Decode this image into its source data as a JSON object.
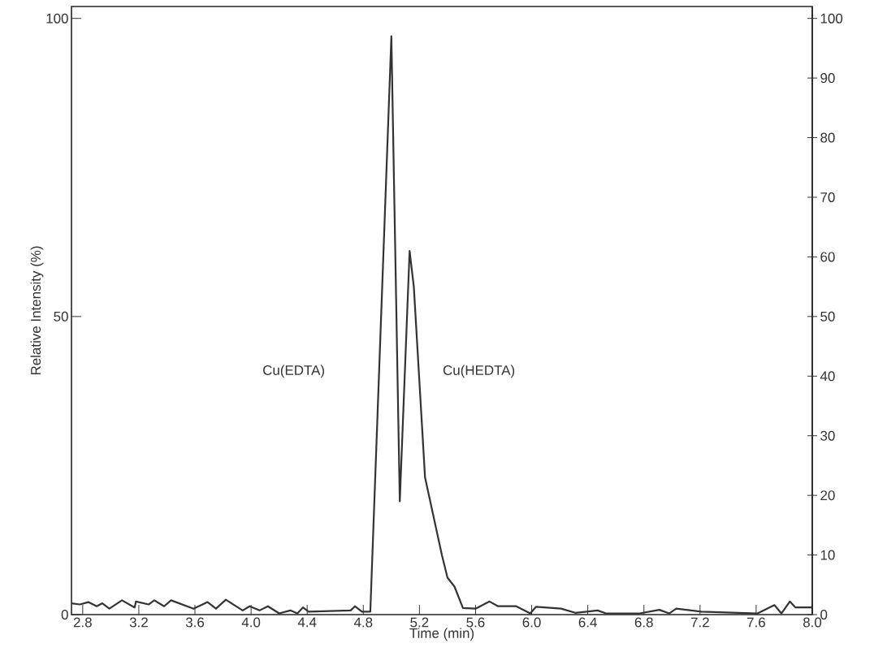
{
  "chart_data": {
    "type": "line",
    "xlabel": "Time (min)",
    "ylabel": "Relative Intensity (%)",
    "xlim": [
      2.72,
      8.0
    ],
    "ylim": [
      0,
      102
    ],
    "y2lim": [
      0,
      102
    ],
    "xticks": [
      {
        "value": 2.8,
        "label": "2.8"
      },
      {
        "value": 3.2,
        "label": "3.2"
      },
      {
        "value": 3.6,
        "label": "3.6"
      },
      {
        "value": 4.0,
        "label": "4.0"
      },
      {
        "value": 4.4,
        "label": "4.4"
      },
      {
        "value": 4.8,
        "label": "4.8"
      },
      {
        "value": 5.2,
        "label": "5.2"
      },
      {
        "value": 5.6,
        "label": "5.6"
      },
      {
        "value": 6.0,
        "label": "6.0"
      },
      {
        "value": 6.4,
        "label": "6.4"
      },
      {
        "value": 6.8,
        "label": "6.8"
      },
      {
        "value": 7.2,
        "label": "7.2"
      },
      {
        "value": 7.6,
        "label": "7.6"
      },
      {
        "value": 8.0,
        "label": "8.0"
      }
    ],
    "yticks": [
      0,
      50,
      100
    ],
    "y2ticks": [
      0,
      10,
      20,
      30,
      40,
      50,
      60,
      70,
      80,
      90,
      100
    ],
    "annotations": [
      "Cu(EDTA)",
      "Cu(HEDTA)"
    ],
    "series": [
      {
        "color": "#333333",
        "axis": "y",
        "x": [
          2.72,
          2.78,
          2.84,
          2.9,
          2.94,
          2.99,
          3.08,
          3.17,
          3.18,
          3.27,
          3.31,
          3.38,
          3.43,
          3.59,
          3.69,
          3.75,
          3.82,
          3.94,
          3.99,
          4.06,
          4.12,
          4.2,
          4.28,
          4.33,
          4.37,
          4.41,
          4.71,
          4.74,
          4.79,
          4.85,
          5.0,
          5.06,
          5.13,
          5.16,
          5.24,
          5.36,
          5.4,
          5.45,
          5.51,
          5.6,
          5.7,
          5.76,
          5.89,
          5.99,
          6.03,
          6.21,
          6.31,
          6.47,
          6.53,
          6.77,
          6.91,
          6.98,
          7.03,
          7.21,
          7.61,
          7.73,
          7.78,
          7.84,
          7.88,
          8.0
        ],
        "values": [
          1.9,
          1.7,
          2.1,
          1.4,
          1.9,
          1.0,
          2.4,
          1.2,
          2.2,
          1.7,
          2.4,
          1.4,
          2.4,
          1.0,
          2.1,
          1.0,
          2.5,
          0.7,
          1.4,
          0.7,
          1.4,
          0.2,
          0.7,
          0.2,
          1.2,
          0.5,
          0.7,
          1.4,
          0.5,
          0.5,
          97,
          19,
          61,
          55,
          23,
          10,
          6.2,
          4.7,
          1.1,
          1.0,
          2.2,
          1.4,
          1.4,
          0.2,
          1.3,
          1.0,
          0.3,
          0.7,
          0.2,
          0.2,
          0.8,
          0.2,
          1.0,
          0.5,
          0.2,
          1.6,
          0.2,
          2.2,
          1.2,
          1.2
        ]
      }
    ]
  }
}
